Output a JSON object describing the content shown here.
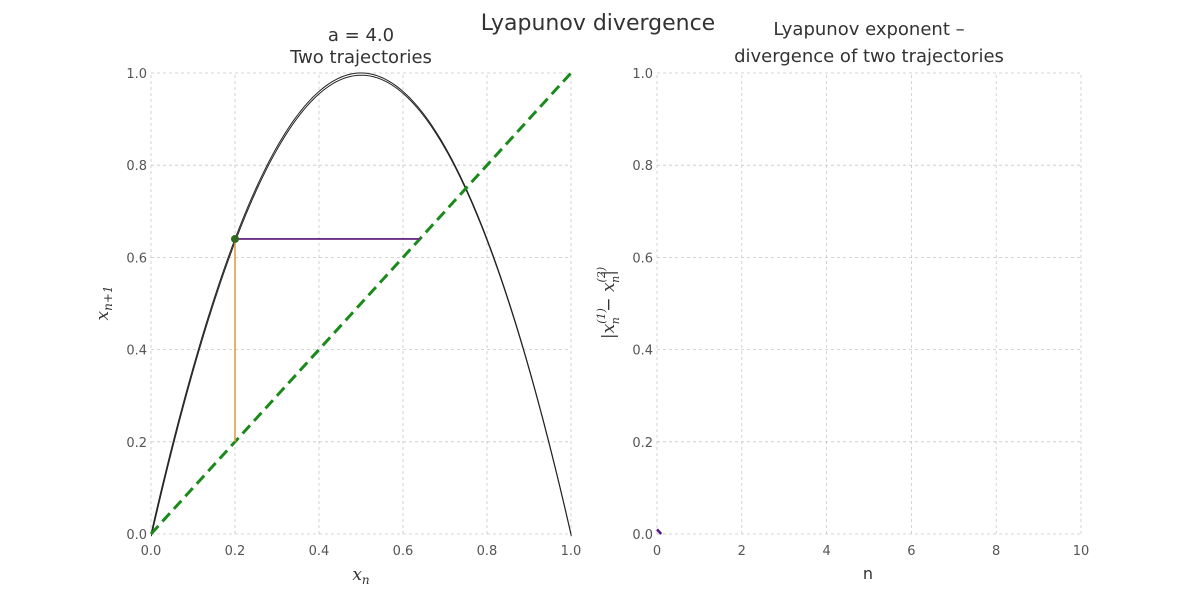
{
  "suptitle": "Lyapunov divergence",
  "chart_data": [
    {
      "type": "line",
      "title_line1": "a = 4.0",
      "title_line2": "Two trajectories",
      "xlabel": "x_n",
      "ylabel": "x_{n+1}",
      "xlim": [
        0.0,
        1.0
      ],
      "ylim": [
        0.0,
        1.0
      ],
      "x_ticks": [
        "0.0",
        "0.2",
        "0.4",
        "0.6",
        "0.8",
        "1.0"
      ],
      "y_ticks": [
        "0.0",
        "0.2",
        "0.4",
        "0.6",
        "0.8",
        "1.0"
      ],
      "grid": true,
      "parameter_a": 4.0,
      "curve": "logistic map f(x) = a·x·(1−x)",
      "identity_line": {
        "from": [
          0.0,
          0.0
        ],
        "to": [
          1.0,
          1.0
        ],
        "style": "dashed",
        "color": "#1a8a1a"
      },
      "cobweb": [
        {
          "color": "#e0a040",
          "points": [
            [
              0.2,
              0.2
            ],
            [
              0.2,
              0.64
            ],
            [
              0.64,
              0.64
            ]
          ]
        },
        {
          "color": "#5a1a8a",
          "points": [
            [
              0.2,
              0.64
            ],
            [
              0.64,
              0.64
            ]
          ]
        }
      ],
      "marker": {
        "x": 0.2,
        "y": 0.64,
        "color": "#2f6a1e"
      }
    },
    {
      "type": "line",
      "title_line1": "Lyapunov exponent –",
      "title_line2": "divergence of two trajectories",
      "xlabel": "n",
      "ylabel": "|x_n^(1) − x_n^(2)|",
      "xlim": [
        0,
        10
      ],
      "ylim": [
        0.0,
        1.0
      ],
      "x_ticks": [
        "0",
        "2",
        "4",
        "6",
        "8",
        "10"
      ],
      "y_ticks": [
        "0.0",
        "0.2",
        "0.4",
        "0.6",
        "0.8",
        "1.0"
      ],
      "grid": true,
      "series": [
        {
          "color": "#5a1a8a",
          "points": [
            [
              0,
              0.01
            ],
            [
              0.1,
              0.0
            ]
          ]
        }
      ]
    }
  ],
  "colors": {
    "curve": "#222222",
    "identity": "#1a8a1a",
    "orange": "#e0a040",
    "purple": "#5a1a8a",
    "marker": "#2f6a1e"
  }
}
